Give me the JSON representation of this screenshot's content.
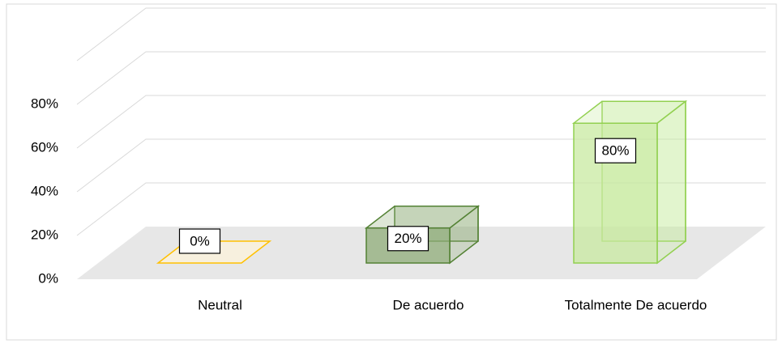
{
  "chart_data": {
    "type": "bar3d",
    "categories": [
      "Neutral",
      "De acuerdo",
      "Totalmente De acuerdo"
    ],
    "values": [
      0,
      20,
      80
    ],
    "value_labels": [
      "0%",
      "20%",
      "80%"
    ],
    "colors": [
      {
        "stroke": "#ffc000",
        "fill": "#fbf3dc"
      },
      {
        "stroke": "#548235",
        "fill": "#8fac78"
      },
      {
        "stroke": "#92d050",
        "fill": "#c8eaa0"
      }
    ],
    "ylim": [
      0,
      100
    ],
    "yticks": [
      {
        "value": 0,
        "label": "0%"
      },
      {
        "value": 20,
        "label": "20%"
      },
      {
        "value": 40,
        "label": "40%"
      },
      {
        "value": 60,
        "label": "60%"
      },
      {
        "value": 80,
        "label": "80%"
      }
    ],
    "grid": true
  }
}
